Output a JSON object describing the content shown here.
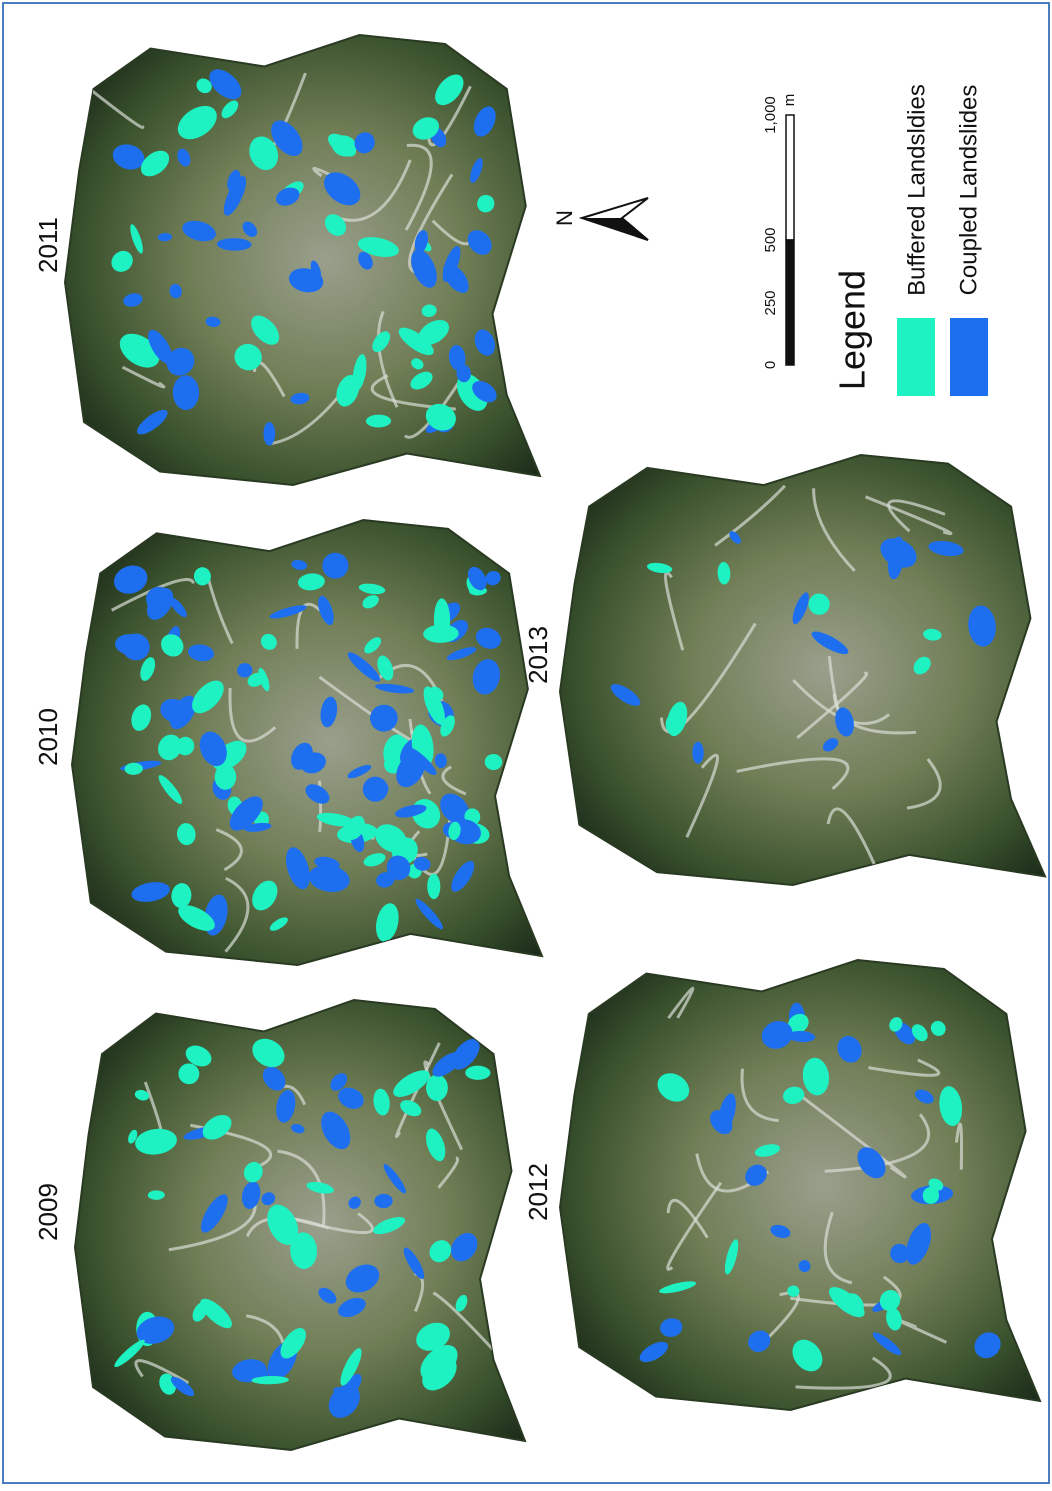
{
  "panels": [
    {
      "year": "2009"
    },
    {
      "year": "2010"
    },
    {
      "year": "2011"
    },
    {
      "year": "2012"
    },
    {
      "year": "2013"
    }
  ],
  "legend": {
    "title": "Legend",
    "items": [
      {
        "label": "Buffered Landsldies",
        "color": "#1ef2c2"
      },
      {
        "label": "Coupled Landslides",
        "color": "#1e6ff0"
      }
    ]
  },
  "scale_bar": {
    "labels": [
      "0",
      "250",
      "500",
      "1,000"
    ],
    "unit": "m"
  },
  "north_arrow": {
    "label": "N"
  }
}
